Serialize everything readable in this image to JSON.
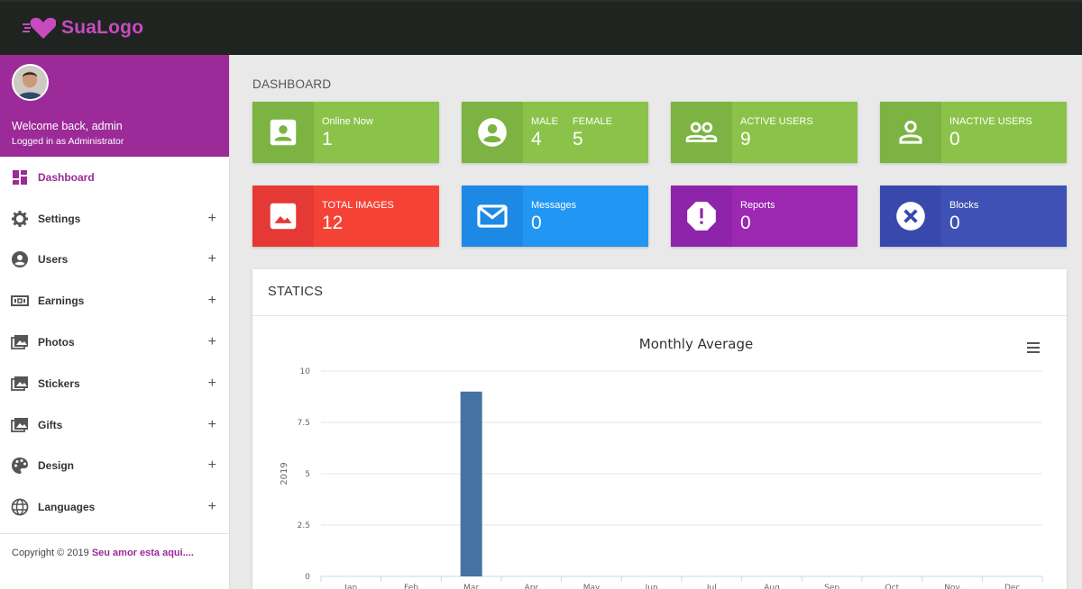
{
  "brand": {
    "name": "SuaLogo",
    "color": "#c74bbf"
  },
  "profile": {
    "welcome": "Welcome back, admin",
    "role": "Logged in as Administrator"
  },
  "menu": [
    {
      "label": "Dashboard",
      "icon": "dashboard-icon",
      "active": true,
      "expandable": false
    },
    {
      "label": "Settings",
      "icon": "gear-icon",
      "expandable": true
    },
    {
      "label": "Users",
      "icon": "user-circle-icon",
      "expandable": true
    },
    {
      "label": "Earnings",
      "icon": "money-icon",
      "expandable": true
    },
    {
      "label": "Photos",
      "icon": "photos-icon",
      "expandable": true
    },
    {
      "label": "Stickers",
      "icon": "photos-icon",
      "expandable": true
    },
    {
      "label": "Gifts",
      "icon": "photos-icon",
      "expandable": true
    },
    {
      "label": "Design",
      "icon": "palette-icon",
      "expandable": true
    },
    {
      "label": "Languages",
      "icon": "globe-icon",
      "expandable": true
    }
  ],
  "menu_plus": "+",
  "footer": {
    "copyright": "Copyright © 2019",
    "link": "Seu amor esta aqui...."
  },
  "page_title": "DASHBOARD",
  "cards": {
    "online": {
      "label": "Online Now",
      "value": "1",
      "color": "#8bc34a",
      "icon": "account-box-icon"
    },
    "gender": {
      "male_label": "MALE",
      "male_value": "4",
      "female_label": "FEMALE",
      "female_value": "5",
      "color": "#8bc34a",
      "icon": "account-circle-icon"
    },
    "active": {
      "label": "ACTIVE USERS",
      "value": "9",
      "color": "#8bc34a",
      "icon": "people-outline-icon"
    },
    "inactive": {
      "label": "INACTIVE USERS",
      "value": "0",
      "color": "#8bc34a",
      "icon": "person-outline-icon"
    },
    "images": {
      "label": "TOTAL IMAGES",
      "value": "12",
      "color": "#f44336",
      "icon": "image-icon"
    },
    "messages": {
      "label": "Messages",
      "value": "0",
      "color": "#2196f3",
      "icon": "mail-icon"
    },
    "reports": {
      "label": "Reports",
      "value": "0",
      "color": "#9c27b0",
      "icon": "report-octagon-icon"
    },
    "blocks": {
      "label": "Blocks",
      "value": "0",
      "color": "#3f51b5",
      "icon": "cancel-icon"
    }
  },
  "statics": {
    "title": "STATICS",
    "menu_icon": "hamburger-icon"
  },
  "chart_data": {
    "type": "bar",
    "title": "Monthly Average",
    "categories": [
      "Jan",
      "Feb",
      "Mar",
      "Apr",
      "May",
      "Jun",
      "Jul",
      "Aug",
      "Sep",
      "Oct",
      "Nov",
      "Dec"
    ],
    "series": [
      {
        "name": "2019",
        "values": [
          0,
          0,
          9,
          0,
          0,
          0,
          0,
          0,
          0,
          0,
          0,
          0
        ],
        "color": "#4672a4"
      }
    ],
    "ylabel": "2019",
    "ylim": [
      0,
      10
    ],
    "yticks": [
      "0",
      "2.5",
      "5",
      "7.5",
      "10"
    ],
    "grid": true
  }
}
